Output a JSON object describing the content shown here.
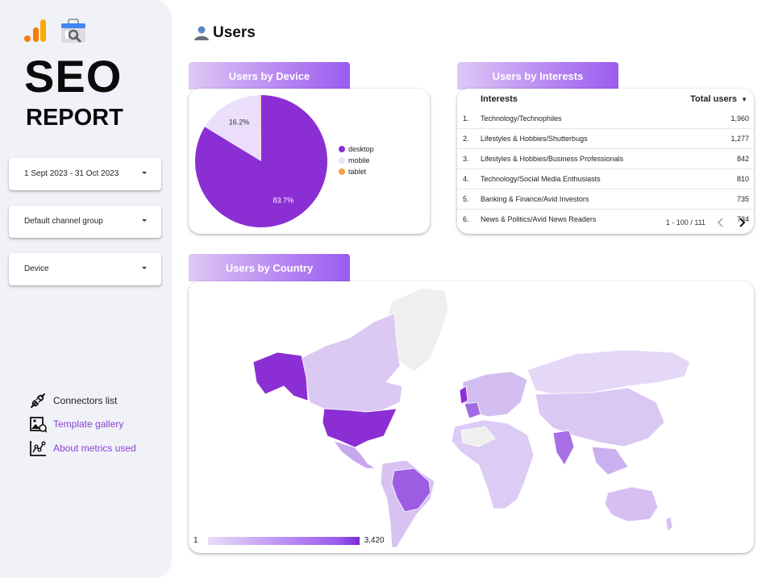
{
  "sidebar": {
    "title": "SEO",
    "subtitle": "REPORT",
    "controls": [
      {
        "label": "1 Sept 2023 - 31 Oct 2023"
      },
      {
        "label": "Default channel group"
      },
      {
        "label": "Device"
      }
    ],
    "links": [
      {
        "label": "Connectors list",
        "icon": "plug-icon"
      },
      {
        "label": "Template gallery",
        "icon": "gallery-icon"
      },
      {
        "label": "About metrics used",
        "icon": "metrics-chart-icon"
      }
    ]
  },
  "section": {
    "title": "Users",
    "icon": "user-icon"
  },
  "device_panel": {
    "tab": "Users by Device",
    "legend": [
      "desktop",
      "mobile",
      "tablet"
    ],
    "colors": {
      "desktop": "#8b2fd4",
      "mobile": "#ecdffb",
      "tablet": "#f4a04a"
    }
  },
  "interests_panel": {
    "tab": "Users by Interests",
    "col_interest": "Interests",
    "col_users": "Total users",
    "sort_icon": "▼",
    "rows": [
      {
        "n": "1.",
        "name": "Technology/Technophiles",
        "users": "1,960"
      },
      {
        "n": "2.",
        "name": "Lifestyles & Hobbies/Shutterbugs",
        "users": "1,277"
      },
      {
        "n": "3.",
        "name": "Lifestyles & Hobbies/Business Professionals",
        "users": "842"
      },
      {
        "n": "4.",
        "name": "Technology/Social Media Enthusiasts",
        "users": "810"
      },
      {
        "n": "5.",
        "name": "Banking & Finance/Avid Investors",
        "users": "735"
      },
      {
        "n": "6.",
        "name": "News & Politics/Avid News Readers",
        "users": "734"
      }
    ],
    "pagination": "1 - 100 / 111"
  },
  "country_panel": {
    "tab": "Users by Country",
    "scale_min": "1",
    "scale_max": "3,420"
  },
  "chart_data": {
    "type": "pie",
    "categories": [
      "desktop",
      "mobile",
      "tablet"
    ],
    "values": [
      83.7,
      16.2,
      0.1
    ],
    "labels": [
      "83.7%",
      "16.2%",
      ""
    ],
    "legend": "right"
  }
}
